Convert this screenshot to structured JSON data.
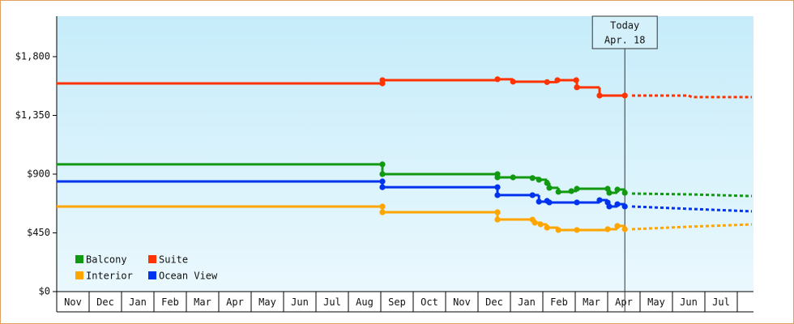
{
  "chart_data": {
    "type": "step-line",
    "xlim": [
      0,
      21.5
    ],
    "xticks": [
      {
        "value": 0,
        "label": "Nov"
      },
      {
        "value": 1,
        "label": "Dec"
      },
      {
        "value": 2,
        "label": "Jan"
      },
      {
        "value": 3,
        "label": "Feb"
      },
      {
        "value": 4,
        "label": "Mar"
      },
      {
        "value": 5,
        "label": "Apr"
      },
      {
        "value": 6,
        "label": "May"
      },
      {
        "value": 7,
        "label": "Jun"
      },
      {
        "value": 8,
        "label": "Jul"
      },
      {
        "value": 9,
        "label": "Aug"
      },
      {
        "value": 10,
        "label": "Sep"
      },
      {
        "value": 11,
        "label": "Oct"
      },
      {
        "value": 12,
        "label": "Nov"
      },
      {
        "value": 13,
        "label": "Dec"
      },
      {
        "value": 14,
        "label": "Jan"
      },
      {
        "value": 15,
        "label": "Feb"
      },
      {
        "value": 16,
        "label": "Mar"
      },
      {
        "value": 17,
        "label": "Apr"
      },
      {
        "value": 18,
        "label": "May"
      },
      {
        "value": 19,
        "label": "Jun"
      },
      {
        "value": 20,
        "label": "Jul"
      }
    ],
    "ylim": [
      0,
      2110
    ],
    "yticks": [
      {
        "value": 0,
        "label": "$0"
      },
      {
        "value": 450,
        "label": "$450"
      },
      {
        "value": 900,
        "label": "$900"
      },
      {
        "value": 1350,
        "label": "$1,350"
      },
      {
        "value": 1800,
        "label": "$1,800"
      }
    ],
    "annotation": {
      "x": 17.53,
      "lines": [
        "Today",
        "Apr. 18"
      ]
    },
    "series": [
      {
        "name": "Balcony",
        "color": "#119911",
        "x": [
          0,
          10.05,
          10.05,
          13.6,
          13.6,
          14.08,
          14.68,
          14.88,
          15.13,
          15.2,
          15.48,
          15.88,
          16.05,
          17.0,
          17.05,
          17.3,
          17.53
        ],
        "values": [
          975,
          975,
          900,
          900,
          875,
          875,
          870,
          857,
          832,
          795,
          764,
          770,
          788,
          788,
          757,
          782,
          757
        ],
        "forecast_x": [
          17.75,
          19.5,
          21.45
        ],
        "forecast_values": [
          751,
          745,
          732
        ]
      },
      {
        "name": "Suite",
        "color": "#ff3300",
        "x": [
          0,
          10.05,
          10.05,
          13.6,
          14.08,
          15.13,
          15.45,
          16.03,
          16.05,
          16.75,
          17.53
        ],
        "values": [
          1595,
          1595,
          1620,
          1627,
          1608,
          1605,
          1620,
          1620,
          1565,
          1502,
          1502
        ],
        "forecast_x": [
          17.75,
          19.5,
          19.6,
          21.45
        ],
        "forecast_values": [
          1502,
          1502,
          1490,
          1490
        ]
      },
      {
        "name": "Interior",
        "color": "#ffa500",
        "x": [
          0,
          10.05,
          10.05,
          13.6,
          13.6,
          14.68,
          14.75,
          14.93,
          15.13,
          15.48,
          16.05,
          17.0,
          17.3,
          17.53
        ],
        "values": [
          652,
          652,
          608,
          608,
          552,
          552,
          528,
          515,
          490,
          472,
          472,
          478,
          503,
          478
        ],
        "forecast_x": [
          17.75,
          19.5,
          21.45
        ],
        "forecast_values": [
          478,
          497,
          515
        ]
      },
      {
        "name": "Ocean View",
        "color": "#0033ee",
        "x": [
          0,
          10.05,
          10.05,
          13.6,
          13.6,
          14.68,
          14.88,
          15.13,
          15.2,
          16.05,
          16.75,
          17.0,
          17.05,
          17.3,
          17.53
        ],
        "values": [
          844,
          844,
          800,
          800,
          739,
          739,
          689,
          695,
          683,
          683,
          701,
          683,
          652,
          670,
          652
        ],
        "forecast_x": [
          17.75,
          19.5,
          21.45
        ],
        "forecast_values": [
          652,
          634,
          615
        ]
      }
    ]
  }
}
